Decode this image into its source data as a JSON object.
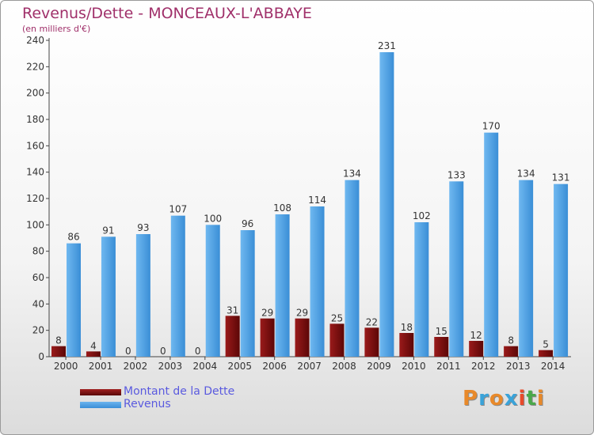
{
  "chart_data": {
    "type": "bar",
    "title": "Revenus/Dette - MONCEAUX-L'ABBAYE",
    "subtitle": "(en milliers d'€)",
    "categories": [
      "2000",
      "2001",
      "2002",
      "2003",
      "2004",
      "2005",
      "2006",
      "2007",
      "2008",
      "2009",
      "2010",
      "2011",
      "2012",
      "2013",
      "2014"
    ],
    "series": [
      {
        "name": "Montant de la Dette",
        "values": [
          8,
          4,
          0,
          0,
          0,
          31,
          29,
          29,
          25,
          22,
          18,
          15,
          12,
          8,
          5
        ],
        "color": "#7a1010"
      },
      {
        "name": "Revenus",
        "values": [
          86,
          91,
          93,
          107,
          100,
          96,
          108,
          114,
          134,
          231,
          102,
          133,
          170,
          134,
          131
        ],
        "color": "#4a9ee2"
      }
    ],
    "ylim": [
      0,
      240
    ],
    "yticks": [
      0,
      20,
      40,
      60,
      80,
      100,
      120,
      140,
      160,
      180,
      200,
      220,
      240
    ],
    "grid": false,
    "legend": "bottom-left"
  },
  "logo": {
    "text": "Proxiti",
    "colors": [
      "#e8892a",
      "#3aa3d9",
      "#e8892a",
      "#3aa3d9",
      "#e84a2a",
      "#4aa84a",
      "#e8892a"
    ]
  }
}
